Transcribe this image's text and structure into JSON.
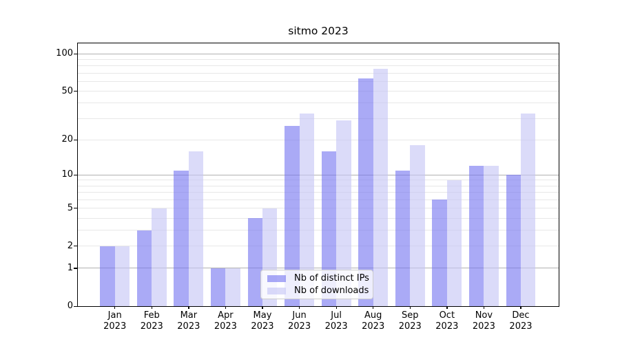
{
  "title": "sitmo 2023",
  "chart_data": {
    "type": "bar",
    "title": "sitmo 2023",
    "x": {
      "months": [
        "Jan",
        "Feb",
        "Mar",
        "Apr",
        "May",
        "Jun",
        "Jul",
        "Aug",
        "Sep",
        "Oct",
        "Nov",
        "Dec"
      ],
      "year": "2023"
    },
    "series": [
      {
        "name": "Nb of distinct IPs",
        "color": "#7474f0",
        "alpha": 0.61,
        "values": [
          2,
          3,
          11,
          1,
          4,
          26,
          16,
          63,
          11,
          6,
          12,
          10
        ]
      },
      {
        "name": "Nb of downloads",
        "color": "#c5c5f6",
        "alpha": 0.62,
        "values": [
          2,
          5,
          16,
          1,
          5,
          33,
          29,
          76,
          18,
          9,
          12,
          33
        ]
      }
    ],
    "yscale": "log1p",
    "ylim": [
      0,
      121.3
    ],
    "y_ticks": [
      0,
      1,
      2,
      5,
      10,
      20,
      50,
      100
    ],
    "grid": {
      "major_values": [
        1,
        10,
        100
      ],
      "minor_values": [
        2,
        3,
        4,
        5,
        6,
        7,
        8,
        9,
        20,
        30,
        40,
        50,
        60,
        70,
        80,
        90
      ],
      "major_color": "#b0b0b0",
      "minor_color": "#e7e7e7"
    },
    "legend": {
      "position": "lower center"
    }
  }
}
